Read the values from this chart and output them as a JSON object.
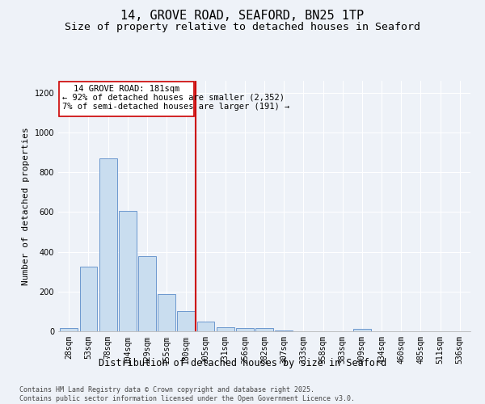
{
  "title": "14, GROVE ROAD, SEAFORD, BN25 1TP",
  "subtitle": "Size of property relative to detached houses in Seaford",
  "xlabel": "Distribution of detached houses by size in Seaford",
  "ylabel": "Number of detached properties",
  "bar_labels": [
    "28sqm",
    "53sqm",
    "78sqm",
    "104sqm",
    "129sqm",
    "155sqm",
    "180sqm",
    "205sqm",
    "231sqm",
    "256sqm",
    "282sqm",
    "307sqm",
    "333sqm",
    "358sqm",
    "383sqm",
    "409sqm",
    "434sqm",
    "460sqm",
    "485sqm",
    "511sqm",
    "536sqm"
  ],
  "bar_values": [
    15,
    325,
    870,
    605,
    380,
    185,
    100,
    50,
    22,
    18,
    18,
    5,
    0,
    0,
    0,
    13,
    0,
    0,
    0,
    0,
    0
  ],
  "bar_color": "#c9ddef",
  "bar_edge_color": "#5b8cc8",
  "ylim": [
    0,
    1260
  ],
  "yticks": [
    0,
    200,
    400,
    600,
    800,
    1000,
    1200
  ],
  "property_line_x": 6.5,
  "property_line_label": "14 GROVE ROAD: 181sqm",
  "annotation_line1": "← 92% of detached houses are smaller (2,352)",
  "annotation_line2": "7% of semi-detached houses are larger (191) →",
  "annotation_box_color": "#ffffff",
  "annotation_box_edge": "#cc0000",
  "footer_line1": "Contains HM Land Registry data © Crown copyright and database right 2025.",
  "footer_line2": "Contains public sector information licensed under the Open Government Licence v3.0.",
  "background_color": "#eef2f8",
  "grid_color": "#ffffff",
  "title_fontsize": 11,
  "subtitle_fontsize": 9.5,
  "axis_label_fontsize": 8,
  "tick_fontsize": 7,
  "annotation_fontsize": 7.5,
  "footer_fontsize": 6
}
